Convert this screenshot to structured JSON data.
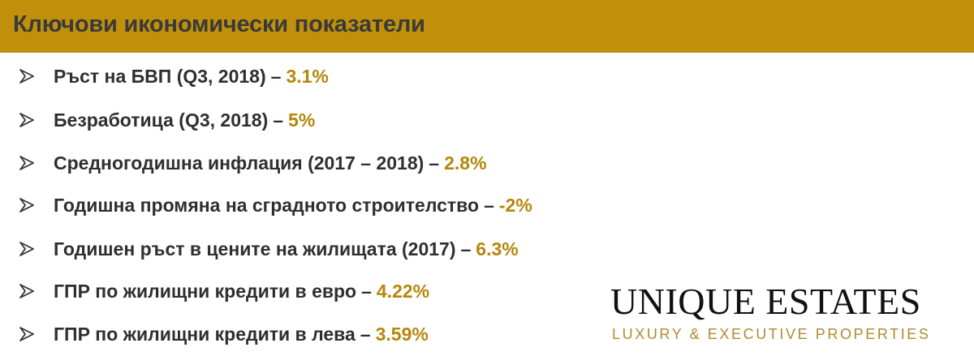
{
  "header": {
    "title": "Ключови икономически показатели"
  },
  "items": [
    {
      "label": "Ръст на БВП (Q3, 2018)",
      "sep": "–",
      "value": "3.1%"
    },
    {
      "label": "Безработица (Q3, 2018)",
      "sep": "–",
      "value": "5%"
    },
    {
      "label": "Средногодишна инфлация (2017 – 2018)",
      "sep": "–",
      "value": "2.8%"
    },
    {
      "label": "Годишна промяна на сградното строителство",
      "sep": "–",
      "value": "-2%"
    },
    {
      "label": "Годишен ръст в цените на жилищата (2017)",
      "sep": "–",
      "value": "6.3%"
    },
    {
      "label": "ГПР по жилищни кредити в евро",
      "sep": "–",
      "value": "4.22%"
    },
    {
      "label": "ГПР по жилищни кредити в лева",
      "sep": "–",
      "value": "3.59%"
    }
  ],
  "logo": {
    "name": "UNIQUE ESTATES",
    "tagline": "LUXURY & EXECUTIVE PROPERTIES"
  },
  "colors": {
    "header_bg": "#c0900a",
    "value_text": "#b5860a",
    "logo_tagline": "#b08a2e"
  },
  "icons": {
    "bullet": "arrowhead-bullet-icon"
  }
}
